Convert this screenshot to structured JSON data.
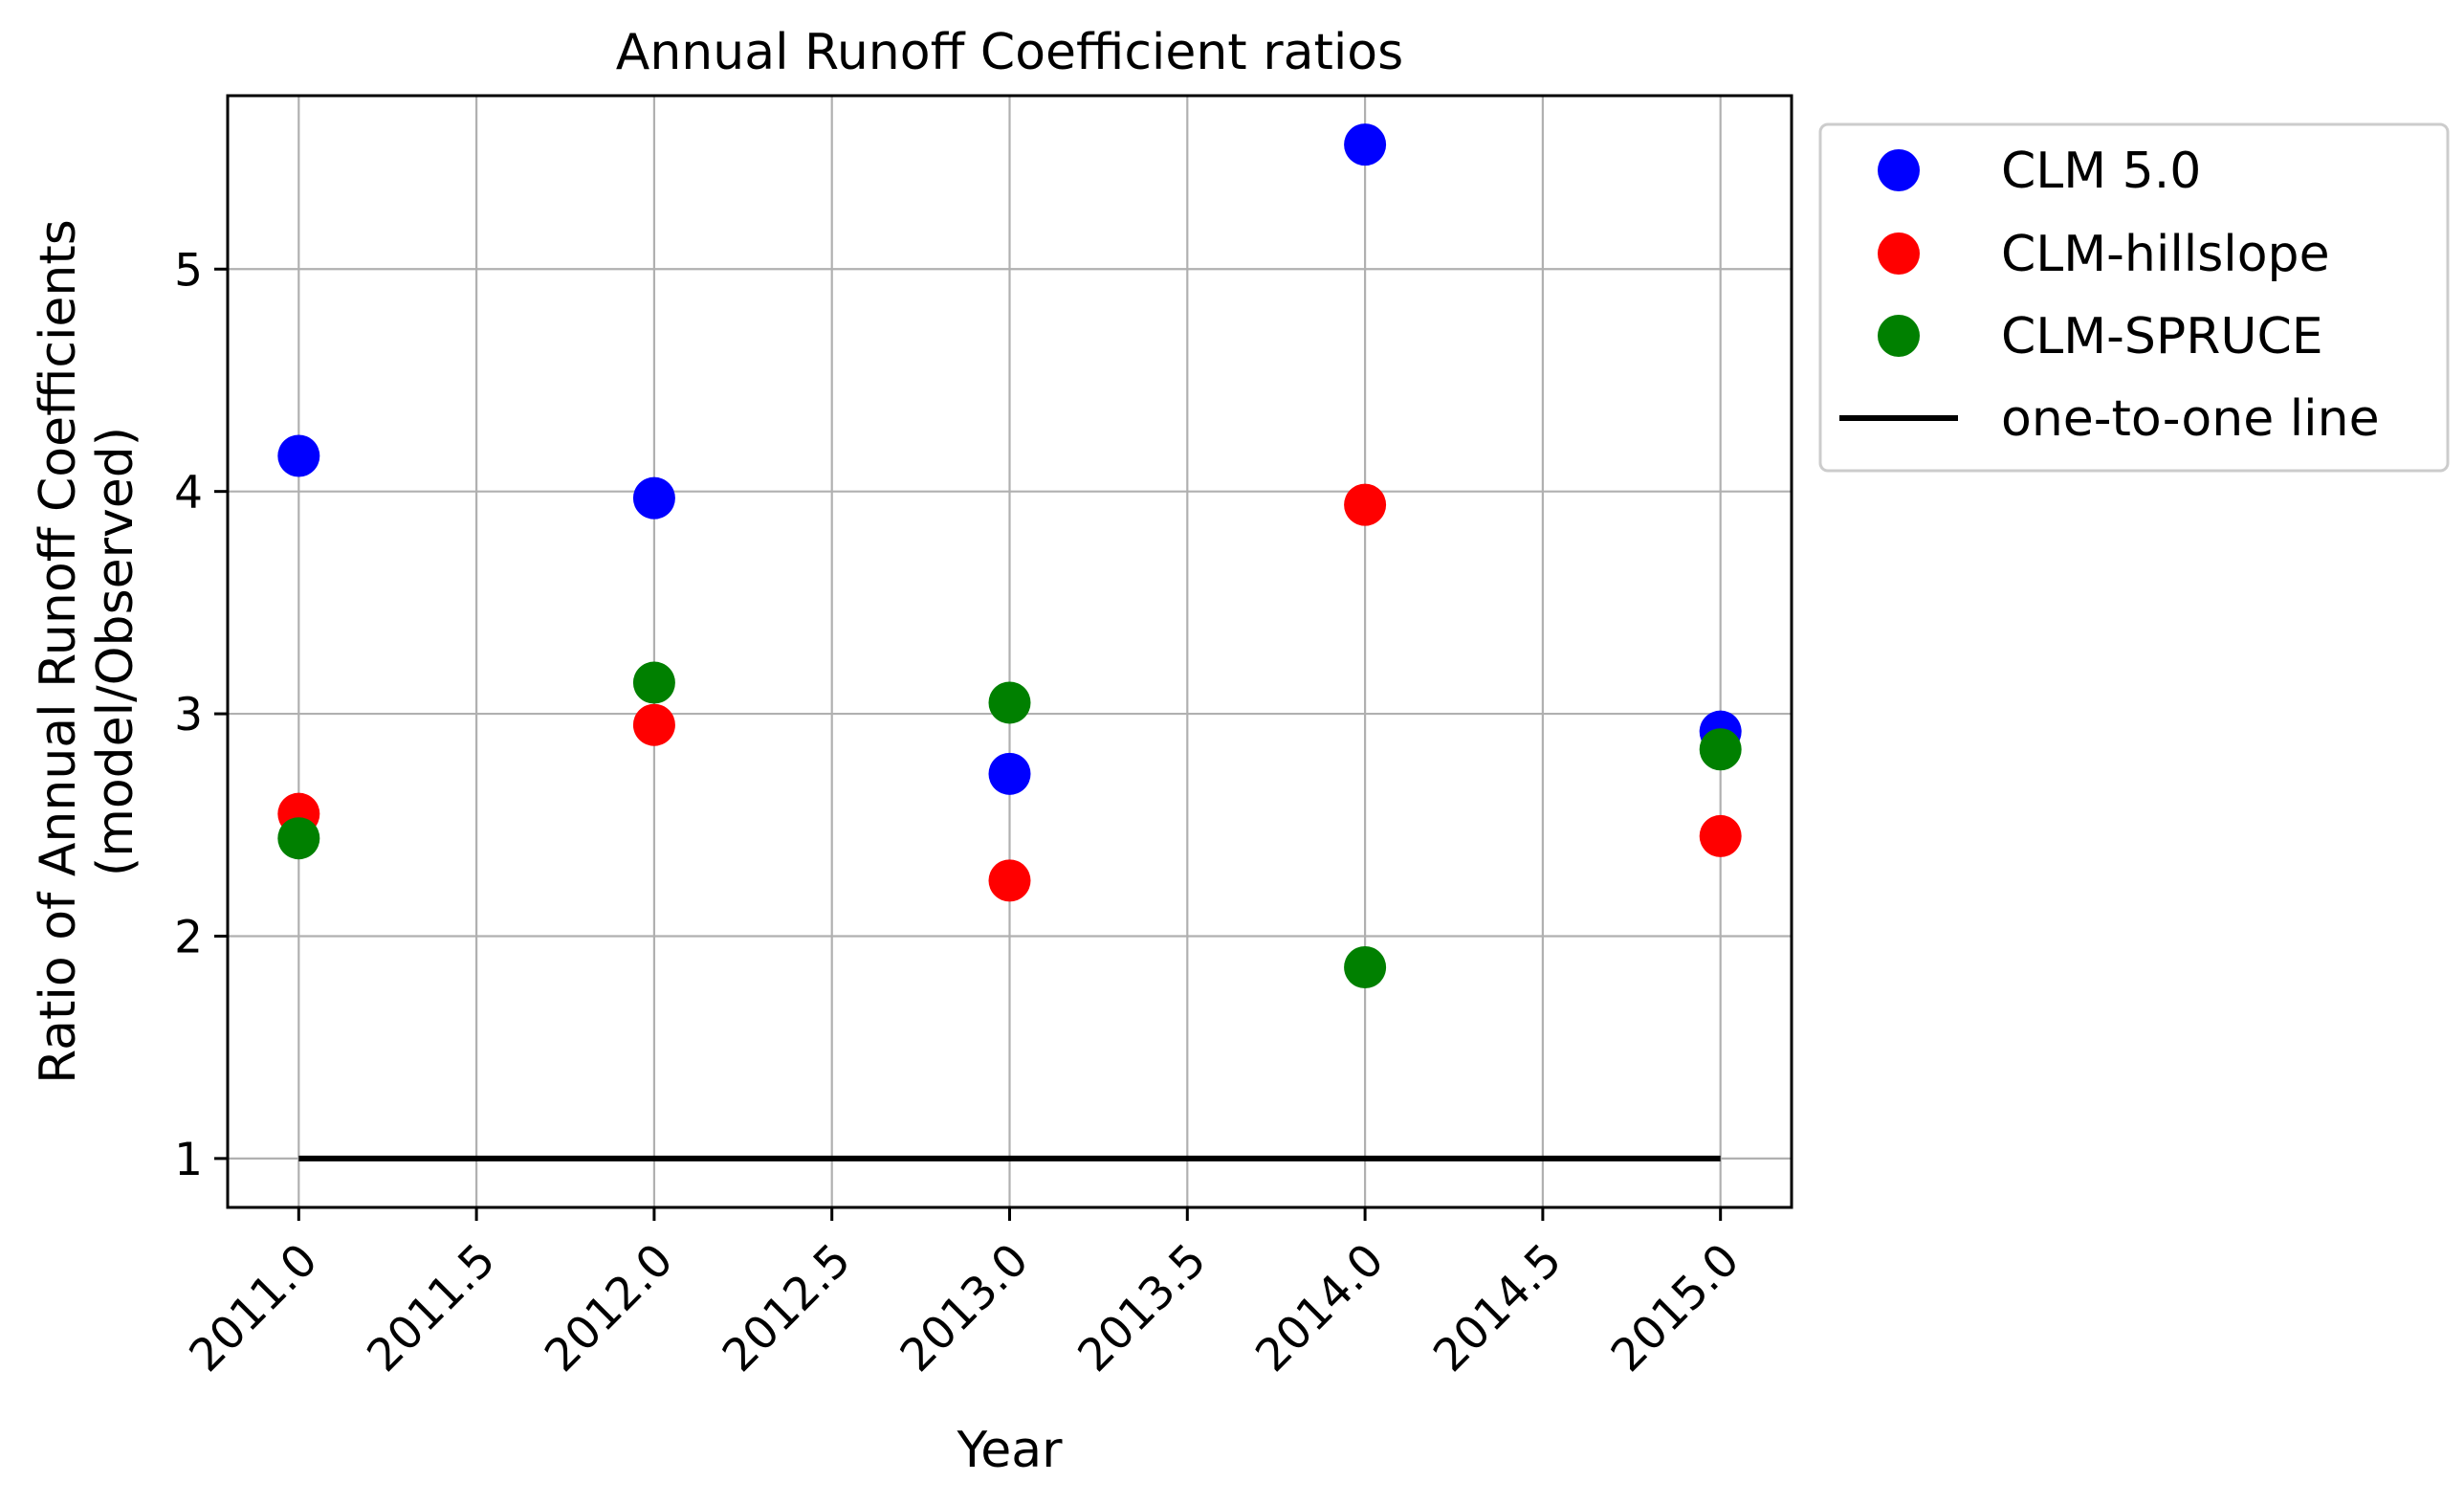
{
  "chart_data": {
    "type": "scatter",
    "title": "Annual Runoff Coefficient ratios",
    "xlabel": "Year",
    "ylabel_line1": "Ratio of Annual Runoff Coefficients",
    "ylabel_line2": "(model/Observed)",
    "xlim": [
      2010.8,
      2015.2
    ],
    "ylim": [
      0.78,
      5.78
    ],
    "x_ticks": [
      2011.0,
      2011.5,
      2012.0,
      2012.5,
      2013.0,
      2013.5,
      2014.0,
      2014.5,
      2015.0
    ],
    "x_tick_labels": [
      "2011.0",
      "2011.5",
      "2012.0",
      "2012.5",
      "2013.0",
      "2013.5",
      "2014.0",
      "2014.5",
      "2015.0"
    ],
    "y_ticks": [
      1,
      2,
      3,
      4,
      5
    ],
    "y_tick_labels": [
      "1",
      "2",
      "3",
      "4",
      "5"
    ],
    "grid": true,
    "legend_placement": "outside upper right",
    "x": [
      2011,
      2012,
      2013,
      2014,
      2015
    ],
    "series": [
      {
        "name": "CLM 5.0",
        "color": "#0000ff",
        "marker": "circle",
        "values": [
          4.16,
          3.97,
          2.73,
          5.56,
          2.92
        ]
      },
      {
        "name": "CLM-hillslope",
        "color": "#ff0000",
        "marker": "circle",
        "values": [
          2.55,
          2.95,
          2.25,
          3.94,
          2.45
        ]
      },
      {
        "name": "CLM-SPRUCE",
        "color": "#008000",
        "marker": "circle",
        "values": [
          2.44,
          3.14,
          3.05,
          1.86,
          2.84
        ]
      }
    ],
    "reference_line": {
      "name": "one-to-one line",
      "color": "#000000",
      "x": [
        2011,
        2015
      ],
      "y": [
        1,
        1
      ]
    }
  }
}
